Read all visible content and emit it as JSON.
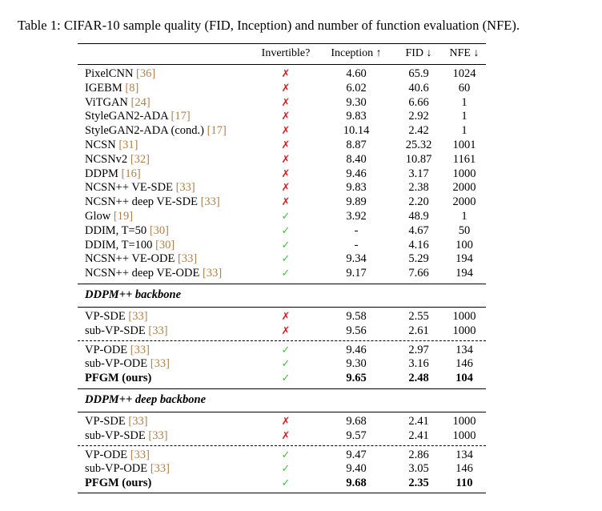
{
  "caption": "Table 1: CIFAR-10 sample quality (FID, Inception) and number of function evaluation (NFE).",
  "header": {
    "invertible": "Invertible?",
    "inception": "Inception ↑",
    "fid": "FID ↓",
    "nfe": "NFE ↓"
  },
  "marks": {
    "cross": "✗",
    "check": "✓"
  },
  "group1": [
    {
      "name": "PixelCNN",
      "ref": "[36]",
      "inv": "cross",
      "inception": "4.60",
      "fid": "65.9",
      "nfe": "1024"
    },
    {
      "name": "IGEBM",
      "ref": "[8]",
      "inv": "cross",
      "inception": "6.02",
      "fid": "40.6",
      "nfe": "60"
    },
    {
      "name": "ViTGAN",
      "ref": "[24]",
      "inv": "cross",
      "inception": "9.30",
      "fid": "6.66",
      "nfe": "1"
    },
    {
      "name": "StyleGAN2-ADA",
      "ref": "[17]",
      "inv": "cross",
      "inception": "9.83",
      "fid": "2.92",
      "nfe": "1"
    },
    {
      "name": "StyleGAN2-ADA (cond.)",
      "ref": "[17]",
      "inv": "cross",
      "inception": "10.14",
      "fid": "2.42",
      "nfe": "1"
    },
    {
      "name": "NCSN",
      "ref": "[31]",
      "inv": "cross",
      "inception": "8.87",
      "fid": "25.32",
      "nfe": "1001"
    },
    {
      "name": "NCSNv2",
      "ref": "[32]",
      "inv": "cross",
      "inception": "8.40",
      "fid": "10.87",
      "nfe": "1161"
    },
    {
      "name": "DDPM",
      "ref": "[16]",
      "inv": "cross",
      "inception": "9.46",
      "fid": "3.17",
      "nfe": "1000"
    },
    {
      "name": "NCSN++ VE-SDE",
      "ref": "[33]",
      "inv": "cross",
      "inception": "9.83",
      "fid": "2.38",
      "nfe": "2000"
    },
    {
      "name": "NCSN++ deep VE-SDE",
      "ref": "[33]",
      "inv": "cross",
      "inception": "9.89",
      "fid": "2.20",
      "nfe": "2000"
    },
    {
      "name": "Glow",
      "ref": "[19]",
      "inv": "check",
      "inception": "3.92",
      "fid": "48.9",
      "nfe": "1"
    },
    {
      "name": "DDIM, T=50",
      "ref": "[30]",
      "inv": "check",
      "inception": "-",
      "fid": "4.67",
      "nfe": "50"
    },
    {
      "name": "DDIM, T=100",
      "ref": "[30]",
      "inv": "check",
      "inception": "-",
      "fid": "4.16",
      "nfe": "100"
    },
    {
      "name": "NCSN++ VE-ODE",
      "ref": "[33]",
      "inv": "check",
      "inception": "9.34",
      "fid": "5.29",
      "nfe": "194"
    },
    {
      "name": "NCSN++ deep VE-ODE",
      "ref": "[33]",
      "inv": "check",
      "inception": "9.17",
      "fid": "7.66",
      "nfe": "194"
    }
  ],
  "section2": {
    "title": "DDPM++ backbone",
    "sde": [
      {
        "name": "VP-SDE",
        "ref": "[33]",
        "inv": "cross",
        "inception": "9.58",
        "fid": "2.55",
        "nfe": "1000"
      },
      {
        "name": "sub-VP-SDE",
        "ref": "[33]",
        "inv": "cross",
        "inception": "9.56",
        "fid": "2.61",
        "nfe": "1000"
      }
    ],
    "ode": [
      {
        "name": "VP-ODE",
        "ref": "[33]",
        "inv": "check",
        "inception": "9.46",
        "fid": "2.97",
        "nfe": "134"
      },
      {
        "name": "sub-VP-ODE",
        "ref": "[33]",
        "inv": "check",
        "inception": "9.30",
        "fid": "3.16",
        "nfe": "146"
      },
      {
        "name": "PFGM (ours)",
        "ref": "",
        "inv": "check",
        "inception": "9.65",
        "fid": "2.48",
        "nfe": "104",
        "bold": true
      }
    ]
  },
  "section3": {
    "title": "DDPM++ deep backbone",
    "sde": [
      {
        "name": "VP-SDE",
        "ref": "[33]",
        "inv": "cross",
        "inception": "9.68",
        "fid": "2.41",
        "nfe": "1000"
      },
      {
        "name": "sub-VP-SDE",
        "ref": "[33]",
        "inv": "cross",
        "inception": "9.57",
        "fid": "2.41",
        "nfe": "1000"
      }
    ],
    "ode": [
      {
        "name": "VP-ODE",
        "ref": "[33]",
        "inv": "check",
        "inception": "9.47",
        "fid": "2.86",
        "nfe": "134"
      },
      {
        "name": "sub-VP-ODE",
        "ref": "[33]",
        "inv": "check",
        "inception": "9.40",
        "fid": "3.05",
        "nfe": "146"
      },
      {
        "name": "PFGM (ours)",
        "ref": "",
        "inv": "check",
        "inception": "9.68",
        "fid": "2.35",
        "nfe": "110",
        "bold": true
      }
    ]
  }
}
